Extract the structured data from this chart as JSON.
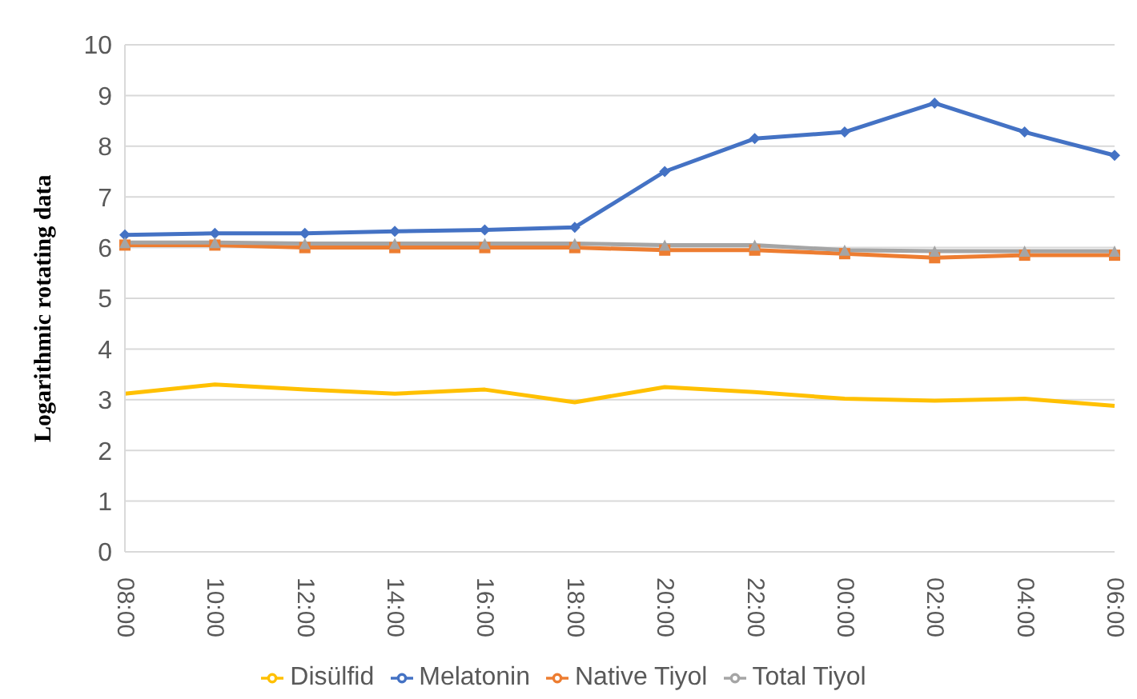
{
  "chart_data": {
    "type": "line",
    "ylabel": "Logarithmic rotating data",
    "categories": [
      "08:00",
      "10:00",
      "12:00",
      "14:00",
      "16:00",
      "18:00",
      "20:00",
      "22:00",
      "00:00",
      "02:00",
      "04:00",
      "06:00"
    ],
    "series": [
      {
        "name": "Melatonin",
        "color": "#4472c4",
        "marker": "diamond",
        "values": [
          6.25,
          6.28,
          6.28,
          6.32,
          6.35,
          6.4,
          7.5,
          8.15,
          8.28,
          8.85,
          8.28,
          7.82
        ]
      },
      {
        "name": "Native Tiyol",
        "color": "#ed7d31",
        "marker": "square",
        "values": [
          6.05,
          6.05,
          6.0,
          6.0,
          6.0,
          6.0,
          5.95,
          5.95,
          5.88,
          5.8,
          5.85,
          5.85
        ]
      },
      {
        "name": "Total Tiyol",
        "color": "#a5a5a5",
        "marker": "triangle",
        "values": [
          6.1,
          6.1,
          6.08,
          6.08,
          6.08,
          6.08,
          6.05,
          6.05,
          5.95,
          5.93,
          5.93,
          5.93
        ]
      },
      {
        "name": "Disülfid",
        "color": "#ffc000",
        "marker": "none",
        "values": [
          3.12,
          3.3,
          3.2,
          3.12,
          3.2,
          2.95,
          3.25,
          3.15,
          3.02,
          2.98,
          3.02,
          2.88
        ]
      }
    ],
    "ylim": [
      0,
      10
    ],
    "yticks": [
      0,
      1,
      2,
      3,
      4,
      5,
      6,
      7,
      8,
      9,
      10
    ],
    "grid": "y",
    "legend": "bottom",
    "line_style": "solid"
  }
}
